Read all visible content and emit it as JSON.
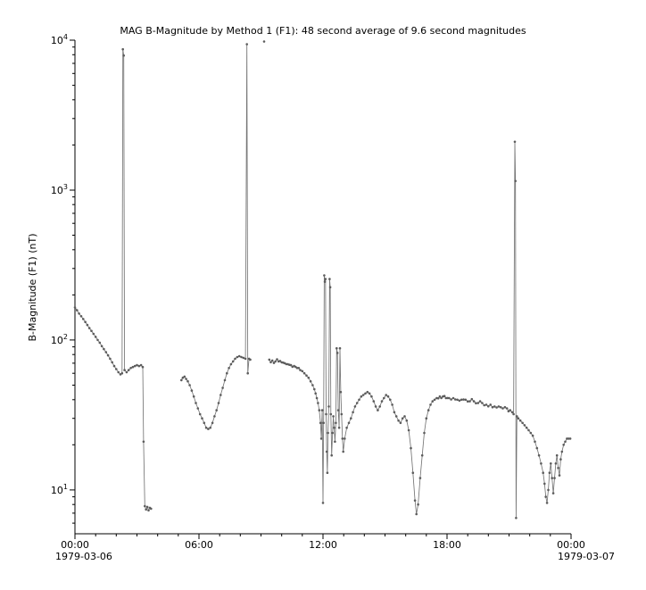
{
  "title": "MAG  B-Magnitude by Method 1 (F1): 48 second average of 9.6 second magnitudes",
  "chart_data": {
    "type": "line",
    "title": "MAG  B-Magnitude by Method 1 (F1): 48 second average of 9.6 second magnitudes",
    "xlabel": "",
    "ylabel": "B-Magnitude (F1) (nT)",
    "x_axis": {
      "range_hours": [
        0,
        24
      ],
      "minor_step_hours": 1,
      "ticks": [
        {
          "t": 0,
          "label": "00:00"
        },
        {
          "t": 6,
          "label": "06:00"
        },
        {
          "t": 12,
          "label": "12:00"
        },
        {
          "t": 18,
          "label": "18:00"
        },
        {
          "t": 24,
          "label": "00:00"
        }
      ],
      "start_date": "1979-03-06",
      "end_date": "1979-03-07"
    },
    "y_axis": {
      "scale": "log",
      "range": [
        5.1,
        10000
      ],
      "major_tick_exponents": [
        1,
        2,
        3,
        4
      ],
      "unit": "nT"
    },
    "style": {
      "line_color": "#757575",
      "marker_color": "#5c5c5c",
      "axis_color": "#000000",
      "background": "#ffffff",
      "marker_radius": 1.3,
      "line_width": 0.85
    },
    "series": [
      {
        "name": "B-Magnitude (F1) 48 s average",
        "segments": [
          [
            [
              0.0,
              165
            ],
            [
              0.1,
              158
            ],
            [
              0.2,
              150
            ],
            [
              0.3,
              144
            ],
            [
              0.4,
              138
            ],
            [
              0.5,
              132
            ],
            [
              0.6,
              126
            ],
            [
              0.7,
              120
            ],
            [
              0.8,
              115
            ],
            [
              0.9,
              110
            ],
            [
              1.0,
              105
            ],
            [
              1.1,
              100
            ],
            [
              1.2,
              96
            ],
            [
              1.3,
              91
            ],
            [
              1.4,
              87
            ],
            [
              1.5,
              83
            ],
            [
              1.6,
              79
            ],
            [
              1.7,
              75
            ],
            [
              1.8,
              71
            ],
            [
              1.9,
              67
            ],
            [
              2.0,
              64
            ],
            [
              2.1,
              61
            ],
            [
              2.2,
              59
            ],
            [
              2.28,
              60
            ],
            [
              2.32,
              8700
            ],
            [
              2.36,
              7900
            ],
            [
              2.4,
              63
            ],
            [
              2.5,
              61
            ],
            [
              2.6,
              63
            ],
            [
              2.7,
              65
            ],
            [
              2.8,
              66
            ],
            [
              2.9,
              67
            ],
            [
              3.0,
              68
            ],
            [
              3.1,
              67
            ],
            [
              3.2,
              68
            ],
            [
              3.28,
              66
            ],
            [
              3.32,
              21
            ],
            [
              3.38,
              7.8
            ],
            [
              3.44,
              7.4
            ],
            [
              3.5,
              7.7
            ],
            [
              3.56,
              7.3
            ],
            [
              3.62,
              7.6
            ],
            [
              3.68,
              7.5
            ]
          ],
          [
            [
              5.15,
              54
            ],
            [
              5.22,
              56
            ],
            [
              5.3,
              57
            ],
            [
              5.38,
              55
            ],
            [
              5.46,
              53
            ],
            [
              5.55,
              50
            ],
            [
              5.65,
              46
            ],
            [
              5.75,
              42
            ],
            [
              5.85,
              38
            ],
            [
              5.95,
              35
            ],
            [
              6.05,
              32
            ],
            [
              6.15,
              30
            ],
            [
              6.25,
              28
            ],
            [
              6.35,
              26
            ],
            [
              6.45,
              25.5
            ],
            [
              6.55,
              26
            ],
            [
              6.65,
              28
            ],
            [
              6.75,
              31
            ],
            [
              6.85,
              34
            ],
            [
              6.95,
              38
            ],
            [
              7.05,
              43
            ],
            [
              7.15,
              48
            ],
            [
              7.25,
              54
            ],
            [
              7.35,
              60
            ],
            [
              7.45,
              65
            ],
            [
              7.55,
              69
            ],
            [
              7.65,
              72
            ],
            [
              7.75,
              75
            ],
            [
              7.85,
              77
            ],
            [
              7.95,
              78
            ],
            [
              8.05,
              77
            ],
            [
              8.15,
              76
            ],
            [
              8.25,
              75
            ],
            [
              8.32,
              9400
            ],
            [
              8.36,
              60
            ],
            [
              8.42,
              75
            ],
            [
              8.48,
              74
            ]
          ],
          [
            [
              9.15,
              9800
            ]
          ],
          [
            [
              9.4,
              74
            ],
            [
              9.55,
              73
            ],
            [
              9.7,
              72
            ],
            [
              9.85,
              72
            ],
            [
              10.0,
              71
            ],
            [
              10.15,
              70
            ],
            [
              10.3,
              69
            ],
            [
              10.45,
              68
            ],
            [
              10.6,
              67
            ],
            [
              10.75,
              65
            ],
            [
              10.9,
              63
            ],
            [
              11.0,
              62
            ],
            [
              11.1,
              60
            ],
            [
              11.2,
              58
            ],
            [
              11.3,
              56
            ],
            [
              11.4,
              53
            ],
            [
              11.5,
              50
            ],
            [
              11.58,
              47
            ],
            [
              11.64,
              44
            ],
            [
              11.7,
              41
            ],
            [
              11.76,
              38
            ],
            [
              11.82,
              34
            ],
            [
              11.88,
              28
            ],
            [
              11.92,
              22
            ],
            [
              11.96,
              34
            ],
            [
              12.0,
              8.2
            ],
            [
              12.03,
              28
            ],
            [
              12.06,
              270
            ],
            [
              12.09,
              245
            ],
            [
              12.12,
              255
            ],
            [
              12.15,
              32
            ],
            [
              12.18,
              18
            ],
            [
              12.21,
              13
            ],
            [
              12.24,
              24
            ],
            [
              12.28,
              36
            ],
            [
              12.32,
              255
            ],
            [
              12.35,
              225
            ],
            [
              12.38,
              32
            ],
            [
              12.42,
              17
            ],
            [
              12.46,
              24
            ],
            [
              12.5,
              31
            ],
            [
              12.54,
              26
            ],
            [
              12.58,
              21
            ],
            [
              12.62,
              28
            ],
            [
              12.66,
              88
            ],
            [
              12.7,
              82
            ],
            [
              12.74,
              34
            ],
            [
              12.78,
              26
            ],
            [
              12.82,
              88
            ],
            [
              12.86,
              45
            ],
            [
              12.9,
              32
            ],
            [
              12.94,
              22
            ],
            [
              12.98,
              18
            ],
            [
              13.05,
              22
            ],
            [
              13.15,
              26
            ],
            [
              13.25,
              28
            ],
            [
              13.35,
              30
            ],
            [
              13.45,
              33
            ],
            [
              13.55,
              36
            ],
            [
              13.65,
              38
            ],
            [
              13.75,
              40
            ],
            [
              13.85,
              42
            ],
            [
              13.95,
              43
            ],
            [
              14.05,
              44
            ],
            [
              14.15,
              45
            ],
            [
              14.25,
              44
            ],
            [
              14.35,
              42
            ],
            [
              14.45,
              39
            ],
            [
              14.55,
              36
            ],
            [
              14.65,
              34
            ],
            [
              14.75,
              36
            ],
            [
              14.85,
              39
            ],
            [
              14.95,
              41
            ],
            [
              15.05,
              43
            ],
            [
              15.15,
              42
            ],
            [
              15.25,
              40
            ],
            [
              15.35,
              37
            ],
            [
              15.45,
              33
            ],
            [
              15.55,
              31
            ],
            [
              15.65,
              29
            ],
            [
              15.75,
              28
            ],
            [
              15.85,
              30
            ],
            [
              15.95,
              31
            ],
            [
              16.05,
              29
            ],
            [
              16.15,
              25
            ],
            [
              16.25,
              19
            ],
            [
              16.35,
              13
            ],
            [
              16.45,
              8.5
            ],
            [
              16.52,
              6.9
            ],
            [
              16.6,
              8
            ],
            [
              16.7,
              12
            ],
            [
              16.8,
              17
            ],
            [
              16.9,
              24
            ],
            [
              17.0,
              30
            ],
            [
              17.1,
              34
            ],
            [
              17.2,
              37
            ],
            [
              17.3,
              39
            ],
            [
              17.4,
              40
            ],
            [
              17.5,
              41
            ],
            [
              17.65,
              42
            ],
            [
              17.8,
              42
            ],
            [
              17.95,
              41
            ],
            [
              18.1,
              41
            ],
            [
              18.3,
              41
            ],
            [
              18.5,
              40
            ],
            [
              18.7,
              40
            ],
            [
              18.9,
              40
            ],
            [
              19.1,
              39
            ],
            [
              19.3,
              39
            ],
            [
              19.5,
              38
            ],
            [
              19.7,
              38
            ],
            [
              19.9,
              37
            ],
            [
              20.1,
              37
            ],
            [
              20.3,
              36
            ],
            [
              20.5,
              36
            ],
            [
              20.7,
              35
            ],
            [
              20.9,
              35
            ],
            [
              21.05,
              34
            ],
            [
              21.15,
              33
            ],
            [
              21.22,
              32
            ],
            [
              21.28,
              2100
            ],
            [
              21.31,
              1150
            ],
            [
              21.34,
              6.5
            ],
            [
              21.38,
              31
            ],
            [
              21.45,
              30
            ],
            [
              21.55,
              29
            ],
            [
              21.65,
              28
            ],
            [
              21.75,
              27
            ],
            [
              21.85,
              26
            ],
            [
              21.95,
              25
            ],
            [
              22.05,
              24
            ],
            [
              22.15,
              23
            ],
            [
              22.25,
              21
            ],
            [
              22.35,
              19
            ],
            [
              22.45,
              17
            ],
            [
              22.55,
              15
            ],
            [
              22.65,
              13
            ],
            [
              22.72,
              11
            ],
            [
              22.78,
              9
            ],
            [
              22.84,
              8.2
            ],
            [
              22.9,
              10
            ],
            [
              22.96,
              13
            ],
            [
              23.02,
              15
            ],
            [
              23.08,
              12
            ],
            [
              23.14,
              9.5
            ],
            [
              23.2,
              12
            ],
            [
              23.26,
              15
            ],
            [
              23.32,
              17
            ],
            [
              23.38,
              14
            ],
            [
              23.44,
              12.5
            ],
            [
              23.5,
              16
            ],
            [
              23.56,
              18
            ],
            [
              23.64,
              20
            ],
            [
              23.72,
              21
            ],
            [
              23.8,
              22
            ],
            [
              23.88,
              22
            ],
            [
              23.96,
              22
            ]
          ]
        ]
      }
    ]
  }
}
